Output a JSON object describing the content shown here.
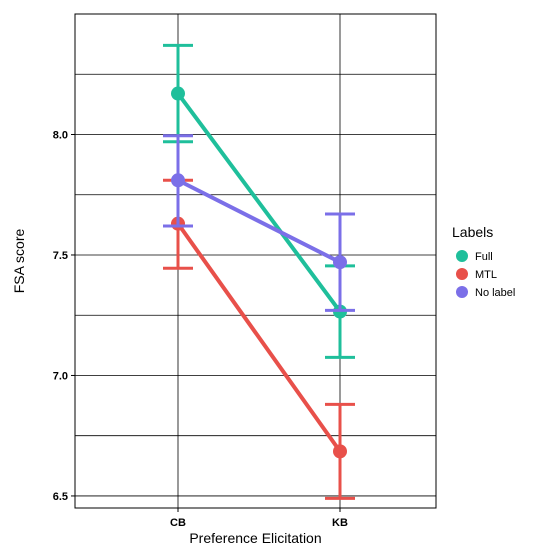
{
  "chart_data": {
    "type": "line",
    "categories": [
      "CB",
      "KB"
    ],
    "xlabel": "Preference Elicitation",
    "ylabel": "FSA score",
    "ylim": [
      6.45,
      8.5
    ],
    "yticks": [
      "6.5",
      "7.0",
      "7.5",
      "8.0"
    ],
    "grid": true,
    "legend": {
      "title": "Labels",
      "placement": "right"
    },
    "series": [
      {
        "name": "Full",
        "color": "#1fbf9b",
        "values": [
          8.17,
          7.265
        ],
        "error_low": [
          7.97,
          7.075
        ],
        "error_high": [
          8.37,
          7.455
        ]
      },
      {
        "name": "MTL",
        "color": "#e8504a",
        "values": [
          7.63,
          6.685
        ],
        "error_low": [
          7.445,
          6.49
        ],
        "error_high": [
          7.81,
          6.88
        ]
      },
      {
        "name": "No label",
        "color": "#7b6fe8",
        "values": [
          7.81,
          7.47
        ],
        "error_low": [
          7.62,
          7.27
        ],
        "error_high": [
          7.995,
          7.67
        ]
      }
    ]
  }
}
